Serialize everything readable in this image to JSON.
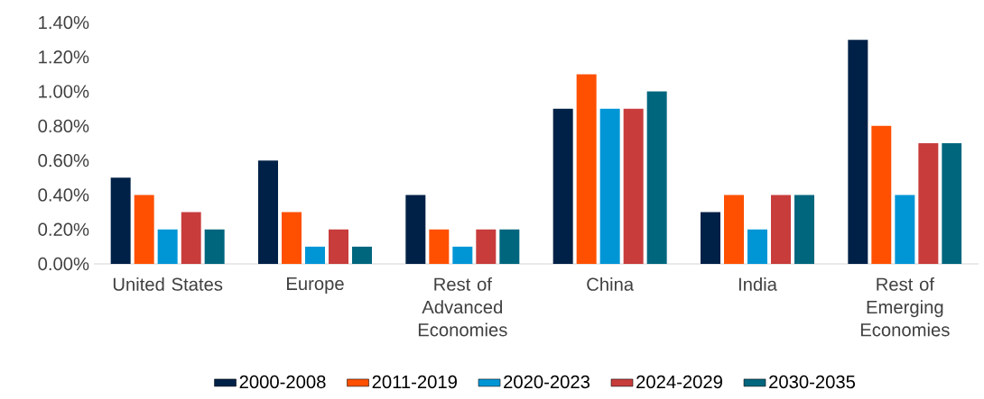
{
  "chart_data": {
    "type": "bar",
    "categories": [
      "United States",
      "Europe",
      "Rest of Advanced Economies",
      "China",
      "India",
      "Rest of Emerging Economies"
    ],
    "series": [
      {
        "name": "2000-2008",
        "color": "#002147",
        "values": [
          0.5,
          0.6,
          0.4,
          0.9,
          0.3,
          1.3
        ]
      },
      {
        "name": "2011-2019",
        "color": "#fe5000",
        "values": [
          0.4,
          0.3,
          0.2,
          1.1,
          0.4,
          0.8
        ]
      },
      {
        "name": "2020-2023",
        "color": "#0096d6",
        "values": [
          0.2,
          0.1,
          0.1,
          0.9,
          0.2,
          0.4
        ]
      },
      {
        "name": "2024-2029",
        "color": "#c83c3c",
        "values": [
          0.3,
          0.2,
          0.2,
          0.9,
          0.4,
          0.7
        ]
      },
      {
        "name": "2030-2035",
        "color": "#00667e",
        "values": [
          0.2,
          0.1,
          0.2,
          1.0,
          0.4,
          0.7
        ]
      }
    ],
    "ylim": [
      0,
      1.4
    ],
    "yticks": [
      {
        "value": 0,
        "label": "0.00%"
      },
      {
        "value": 0.2,
        "label": "0.20%"
      },
      {
        "value": 0.4,
        "label": "0.40%"
      },
      {
        "value": 0.6,
        "label": "0.60%"
      },
      {
        "value": 0.8,
        "label": "0.80%"
      },
      {
        "value": 1.0,
        "label": "1.00%"
      },
      {
        "value": 1.2,
        "label": "1.20%"
      },
      {
        "value": 1.4,
        "label": "1.40%"
      }
    ],
    "grid": false,
    "legend": "bottom"
  }
}
